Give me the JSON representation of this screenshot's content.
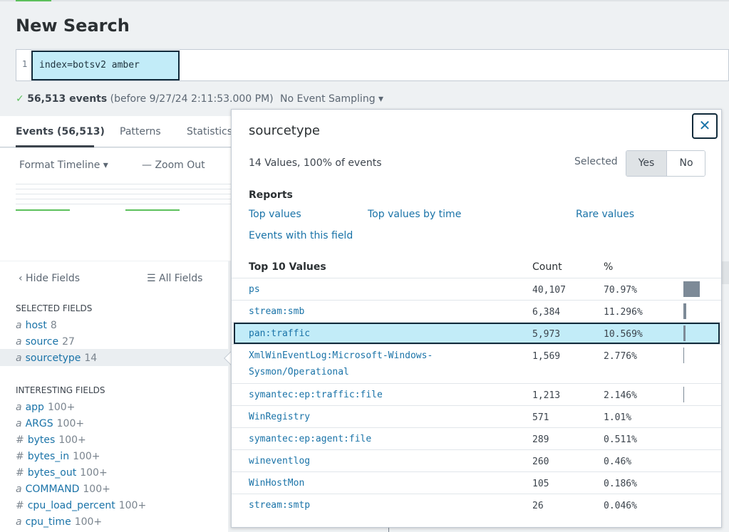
{
  "page": {
    "title": "New Search"
  },
  "search": {
    "line_number": "1",
    "query": "index=botsv2 amber"
  },
  "status": {
    "check": "✓",
    "events": "56,513 events",
    "before": "(before 9/27/24 2:11:53.000 PM)",
    "sampling": "No Event Sampling ▾"
  },
  "tabs": [
    {
      "label": "Events (56,513)"
    },
    {
      "label": "Patterns"
    },
    {
      "label": "Statistics"
    }
  ],
  "timeline": {
    "format_label": "Format Timeline ▾",
    "zoom_label": "— Zoom Out"
  },
  "sidebar": {
    "hide_fields": "‹ Hide Fields",
    "all_fields": "☰ All Fields",
    "selected_header": "SELECTED FIELDS",
    "interesting_header": "INTERESTING FIELDS",
    "selected_fields": [
      {
        "type": "a",
        "name": "host",
        "count": "8"
      },
      {
        "type": "a",
        "name": "source",
        "count": "27"
      },
      {
        "type": "a",
        "name": "sourcetype",
        "count": "14"
      }
    ],
    "interesting_fields": [
      {
        "type": "a",
        "name": "app",
        "count": "100+"
      },
      {
        "type": "a",
        "name": "ARGS",
        "count": "100+"
      },
      {
        "type": "#",
        "name": "bytes",
        "count": "100+"
      },
      {
        "type": "#",
        "name": "bytes_in",
        "count": "100+"
      },
      {
        "type": "#",
        "name": "bytes_out",
        "count": "100+"
      },
      {
        "type": "a",
        "name": "COMMAND",
        "count": "100+"
      },
      {
        "type": "#",
        "name": "cpu_load_percent",
        "count": "100+"
      },
      {
        "type": "a",
        "name": "cpu_time",
        "count": "100+"
      }
    ]
  },
  "popup": {
    "title": "sourcetype",
    "close_glyph": "✕",
    "summary": "14 Values, 100% of events",
    "selected_label": "Selected",
    "toggle_yes": "Yes",
    "toggle_no": "No",
    "reports_header": "Reports",
    "reports": {
      "top_values": "Top values",
      "top_values_by_time": "Top values by time",
      "rare_values": "Rare values",
      "events_with_field": "Events with this field"
    },
    "table": {
      "header_values": "Top 10 Values",
      "header_count": "Count",
      "header_percent": "%",
      "rows": [
        {
          "value": "ps",
          "count": "40,107",
          "percent": "70.97%",
          "fraction": 0.7097
        },
        {
          "value": "stream:smb",
          "count": "6,384",
          "percent": "11.296%",
          "fraction": 0.11296
        },
        {
          "value": "pan:traffic",
          "count": "5,973",
          "percent": "10.569%",
          "fraction": 0.10569
        },
        {
          "value": "XmlWinEventLog:Microsoft-Windows-Sysmon/Operational",
          "value_line1": "XmlWinEventLog:Microsoft-Windows-",
          "value_line2": "Sysmon/Operational",
          "count": "1,569",
          "percent": "2.776%",
          "fraction": 0.02776
        },
        {
          "value": "symantec:ep:traffic:file",
          "count": "1,213",
          "percent": "2.146%",
          "fraction": 0.02146
        },
        {
          "value": "WinRegistry",
          "count": "571",
          "percent": "1.01%",
          "fraction": 0.0101
        },
        {
          "value": "symantec:ep:agent:file",
          "count": "289",
          "percent": "0.511%",
          "fraction": 0.00511
        },
        {
          "value": "wineventlog",
          "count": "260",
          "percent": "0.46%",
          "fraction": 0.0046
        },
        {
          "value": "WinHostMon",
          "count": "105",
          "percent": "0.186%",
          "fraction": 0.00186
        },
        {
          "value": "stream:smtp",
          "count": "26",
          "percent": "0.046%",
          "fraction": 0.00046
        }
      ]
    }
  },
  "colors": {
    "link": "#1a73a8",
    "highlight": "#c2ecf8",
    "accent_green": "#5cc05c"
  }
}
